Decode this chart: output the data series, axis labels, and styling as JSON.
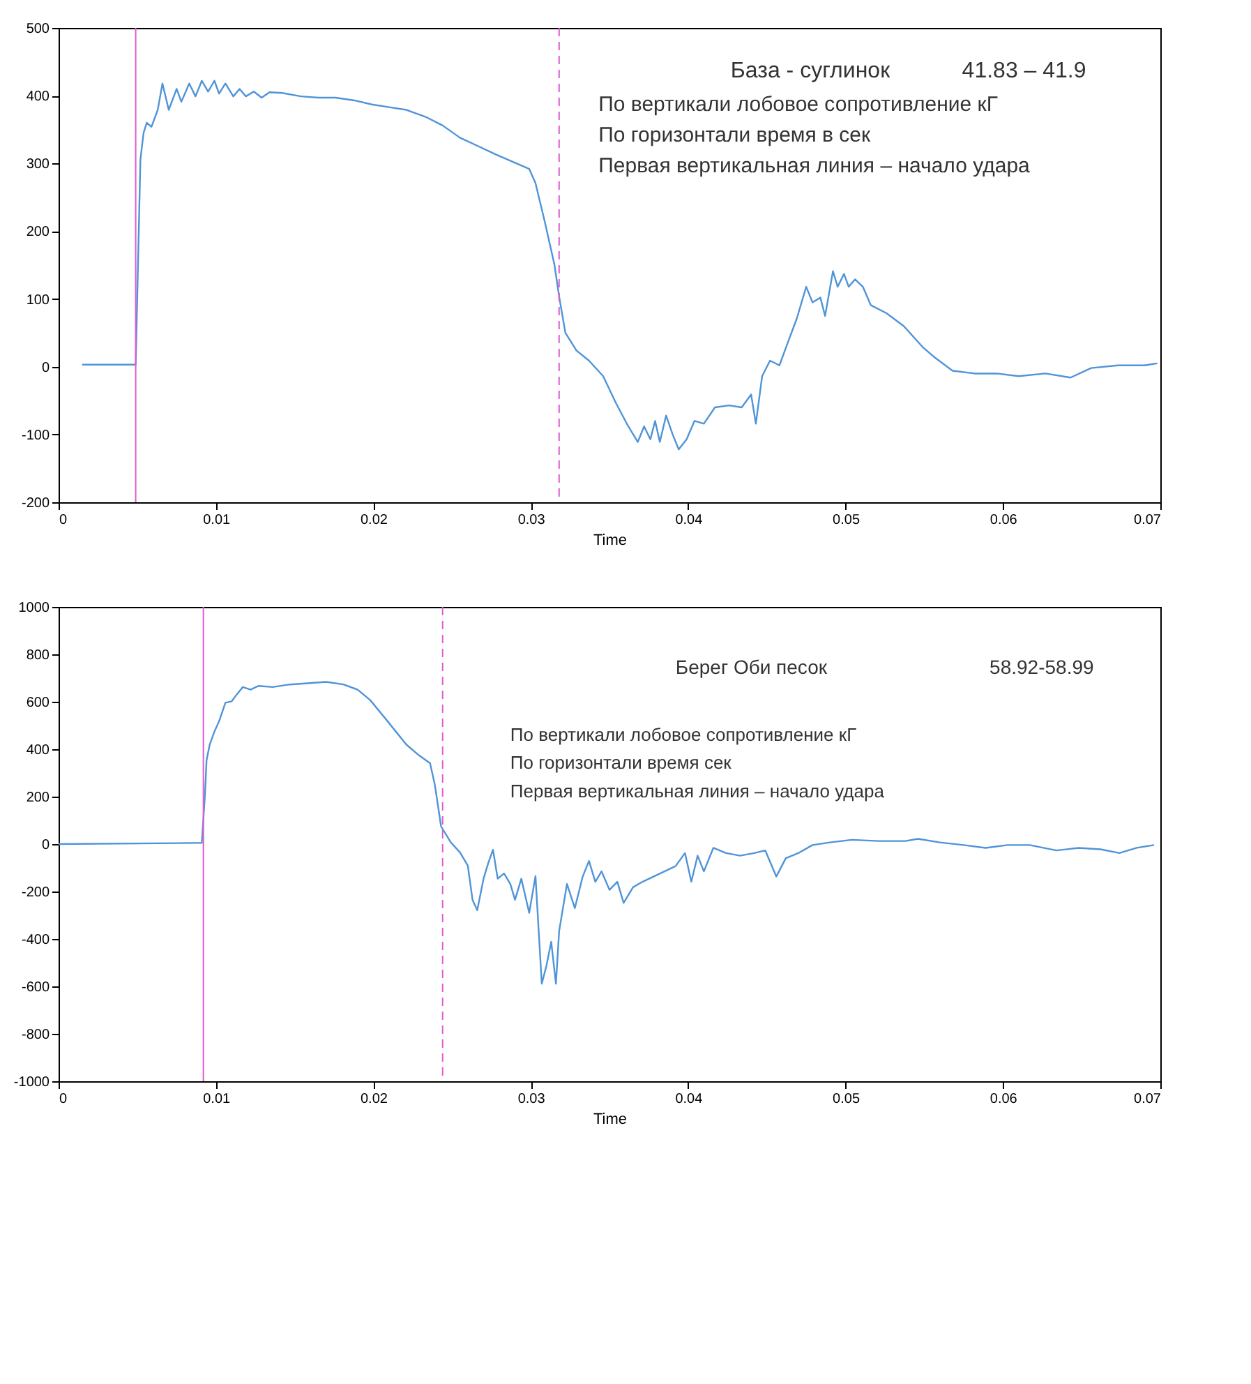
{
  "chart_data": [
    {
      "type": "line",
      "xlabel": "Time",
      "xlim": [
        0,
        0.07
      ],
      "ylim": [
        -200,
        500
      ],
      "xticks": [
        0,
        0.01,
        0.02,
        0.03,
        0.04,
        0.05,
        0.06,
        0.07
      ],
      "yticks": [
        -200,
        -100,
        0,
        100,
        200,
        300,
        400,
        500
      ],
      "grid": false,
      "marker": "none",
      "line_style": "solid",
      "annotations": [
        "База - суглинок",
        "41.83 – 41.9",
        "По вертикали лобовое сопротивление кГ",
        "По горизонтали время в сек",
        "Первая вертикальная линия – начало удара"
      ],
      "ref_lines": [
        {
          "axis": "x",
          "value": 0.0049,
          "color": "#e05ad0",
          "line_style": "solid"
        },
        {
          "axis": "x",
          "value": 0.0318,
          "color": "#e05ad0",
          "line_style": "dashed"
        }
      ],
      "series": [
        {
          "color": "#4f94d8",
          "x": [
            0.0015,
            0.0049,
            0.0052,
            0.0054,
            0.0056,
            0.0059,
            0.0063,
            0.0066,
            0.007,
            0.0075,
            0.0078,
            0.0083,
            0.0087,
            0.0091,
            0.0095,
            0.0099,
            0.0102,
            0.0106,
            0.0111,
            0.0115,
            0.0119,
            0.0124,
            0.0129,
            0.0134,
            0.0142,
            0.0154,
            0.0165,
            0.0176,
            0.0188,
            0.0199,
            0.021,
            0.0221,
            0.0233,
            0.0244,
            0.0255,
            0.0267,
            0.0278,
            0.0289,
            0.0299,
            0.0303,
            0.0309,
            0.0315,
            0.0318,
            0.0322,
            0.0329,
            0.0337,
            0.0346,
            0.0354,
            0.0361,
            0.0368,
            0.0372,
            0.0376,
            0.0379,
            0.0382,
            0.0386,
            0.039,
            0.0394,
            0.0399,
            0.0404,
            0.041,
            0.0417,
            0.0426,
            0.0434,
            0.044,
            0.0443,
            0.0447,
            0.0452,
            0.0458,
            0.0464,
            0.0469,
            0.0475,
            0.0479,
            0.0484,
            0.0487,
            0.0492,
            0.0495,
            0.0499,
            0.0502,
            0.0506,
            0.0511,
            0.0516,
            0.0526,
            0.0537,
            0.0549,
            0.0557,
            0.0568,
            0.0582,
            0.0596,
            0.061,
            0.0627,
            0.0643,
            0.0656,
            0.0673,
            0.069,
            0.0698
          ],
          "values": [
            3,
            3,
            306,
            345,
            360,
            354,
            379,
            418,
            379,
            410,
            391,
            418,
            399,
            422,
            406,
            422,
            403,
            418,
            399,
            410,
            399,
            406,
            397,
            405,
            404,
            399,
            397,
            397,
            393,
            387,
            383,
            379,
            369,
            356,
            338,
            325,
            313,
            302,
            292,
            271,
            213,
            151,
            104,
            50,
            24,
            9,
            -14,
            -53,
            -84,
            -111,
            -88,
            -107,
            -80,
            -111,
            -72,
            -99,
            -122,
            -107,
            -80,
            -84,
            -60,
            -57,
            -60,
            -41,
            -84,
            -14,
            9,
            2,
            40,
            71,
            118,
            95,
            102,
            75,
            141,
            118,
            137,
            118,
            129,
            118,
            91,
            79,
            60,
            29,
            13,
            -6,
            -10,
            -10,
            -14,
            -10,
            -16,
            -2,
            2,
            2,
            5
          ]
        }
      ]
    },
    {
      "type": "line",
      "xlabel": "Time",
      "xlim": [
        0,
        0.07
      ],
      "ylim": [
        -1000,
        1000
      ],
      "xticks": [
        0,
        0.01,
        0.02,
        0.03,
        0.04,
        0.05,
        0.06,
        0.07
      ],
      "yticks": [
        -1000,
        -800,
        -600,
        -400,
        -200,
        0,
        200,
        400,
        600,
        800,
        1000
      ],
      "grid": false,
      "marker": "none",
      "line_style": "solid",
      "annotations": [
        "Берег Оби песок",
        "58.92-58.99",
        "По вертикали лобовое сопротивление кГ",
        "По горизонтали время сек",
        "Первая вертикальная линия – начало удара"
      ],
      "ref_lines": [
        {
          "axis": "x",
          "value": 0.0092,
          "color": "#e05ad0",
          "line_style": "solid"
        },
        {
          "axis": "x",
          "value": 0.0244,
          "color": "#e05ad0",
          "line_style": "dashed"
        }
      ],
      "series": [
        {
          "color": "#4f94d8",
          "x": [
            0,
            0.0091,
            0.0093,
            0.0094,
            0.0096,
            0.0099,
            0.0102,
            0.0106,
            0.011,
            0.0113,
            0.0117,
            0.0122,
            0.0127,
            0.0136,
            0.0147,
            0.0158,
            0.017,
            0.0181,
            0.019,
            0.0198,
            0.0209,
            0.0221,
            0.0229,
            0.0236,
            0.0239,
            0.0242,
            0.0243,
            0.0249,
            0.0255,
            0.026,
            0.0263,
            0.0266,
            0.027,
            0.0273,
            0.0276,
            0.0279,
            0.0283,
            0.0287,
            0.029,
            0.0294,
            0.0299,
            0.0303,
            0.0307,
            0.031,
            0.0313,
            0.0316,
            0.0318,
            0.0323,
            0.0328,
            0.0333,
            0.0337,
            0.0341,
            0.0345,
            0.035,
            0.0355,
            0.0359,
            0.0365,
            0.0371,
            0.0378,
            0.0385,
            0.0392,
            0.0398,
            0.0402,
            0.0406,
            0.041,
            0.0416,
            0.0424,
            0.0433,
            0.0442,
            0.0449,
            0.0456,
            0.0462,
            0.047,
            0.0479,
            0.049,
            0.0504,
            0.0521,
            0.0538,
            0.0546,
            0.056,
            0.0575,
            0.0589,
            0.0603,
            0.0617,
            0.0634,
            0.0648,
            0.0662,
            0.0674,
            0.0685,
            0.0696
          ],
          "values": [
            0,
            5,
            208,
            352,
            419,
            474,
            518,
            596,
            602,
            629,
            662,
            651,
            667,
            662,
            673,
            678,
            684,
            673,
            651,
            607,
            518,
            419,
            374,
            341,
            252,
            120,
            75,
            9,
            -35,
            -91,
            -235,
            -279,
            -146,
            -80,
            -24,
            -146,
            -124,
            -168,
            -235,
            -146,
            -290,
            -135,
            -589,
            -512,
            -412,
            -589,
            -368,
            -168,
            -270,
            -137,
            -71,
            -159,
            -115,
            -193,
            -159,
            -248,
            -182,
            -159,
            -137,
            -115,
            -93,
            -38,
            -159,
            -49,
            -115,
            -16,
            -38,
            -49,
            -38,
            -27,
            -137,
            -60,
            -38,
            -4,
            7,
            18,
            13,
            13,
            22,
            7,
            -4,
            -16,
            -4,
            -4,
            -27,
            -16,
            -22,
            -38,
            -16,
            -4
          ]
        }
      ]
    }
  ]
}
